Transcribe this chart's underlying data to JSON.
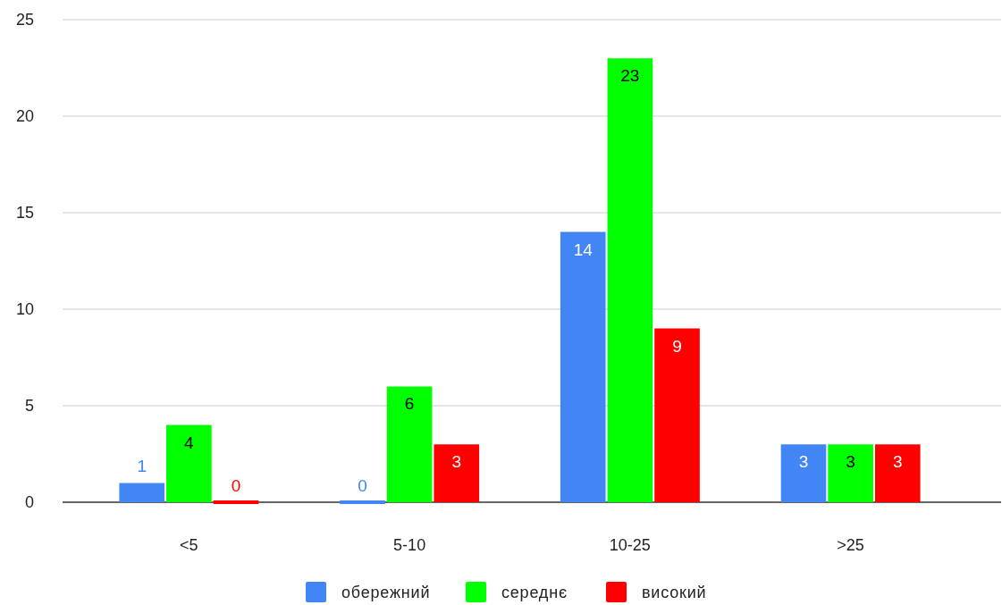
{
  "chart_data": {
    "type": "bar",
    "categories": [
      "<5",
      "5-10",
      "10-25",
      ">25"
    ],
    "series": [
      {
        "name": "обережний",
        "color": "#4285f4",
        "values": [
          1,
          0,
          14,
          3
        ]
      },
      {
        "name": "середнє",
        "color": "#00ff00",
        "values": [
          4,
          6,
          23,
          3
        ]
      },
      {
        "name": "високий",
        "color": "#ff0000",
        "values": [
          0,
          3,
          9,
          3
        ]
      }
    ],
    "ylim": [
      0,
      25
    ],
    "yticks": [
      0,
      5,
      10,
      15,
      20,
      25
    ],
    "grid": "y",
    "legend": "bottom",
    "data_labels": true
  }
}
